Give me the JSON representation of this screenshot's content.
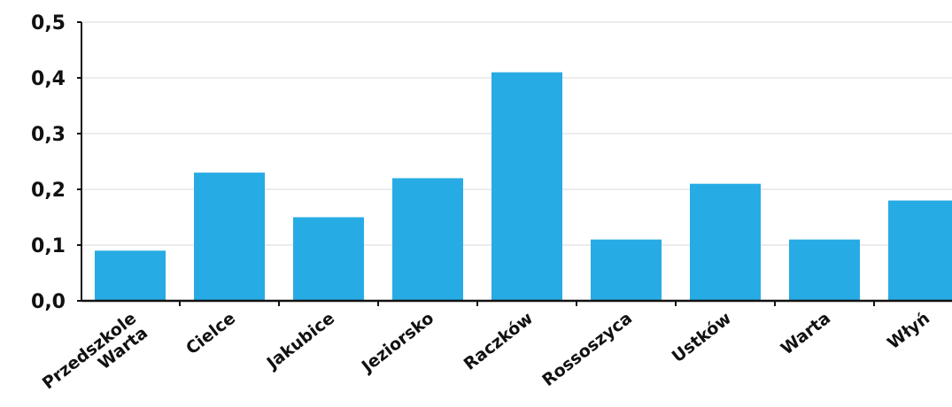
{
  "chart_data": {
    "type": "bar",
    "title": "",
    "xlabel": "",
    "ylabel": "",
    "categories": [
      "Przedszkole Warta",
      "Cielce",
      "Jakubice",
      "Jeziorsko",
      "Raczków",
      "Rossoszyca",
      "Ustków",
      "Warta",
      "Włyń"
    ],
    "category_lines": [
      [
        "Przedszkole",
        "Warta"
      ],
      [
        "Cielce"
      ],
      [
        "Jakubice"
      ],
      [
        "Jeziorsko"
      ],
      [
        "Raczków"
      ],
      [
        "Rossoszyca"
      ],
      [
        "Ustków"
      ],
      [
        "Warta"
      ],
      [
        "Włyń"
      ]
    ],
    "values": [
      0.09,
      0.23,
      0.15,
      0.22,
      0.41,
      0.11,
      0.21,
      0.11,
      0.18
    ],
    "ylim": [
      0,
      0.5
    ],
    "yticks": [
      0.0,
      0.1,
      0.2,
      0.3,
      0.4,
      0.5
    ],
    "ytick_labels": [
      "0,0",
      "0,1",
      "0,2",
      "0,3",
      "0,4",
      "0,5"
    ],
    "grid": true,
    "legend": "none",
    "bar_color": "#27abe4",
    "axis_color": "#111111",
    "grid_color": "#e6e6e6"
  }
}
